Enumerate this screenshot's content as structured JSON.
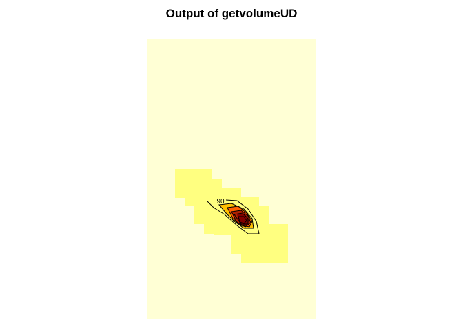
{
  "chart_data": {
    "type": "heatmap",
    "title": "Output of getvolumeUD",
    "xlabel": "",
    "ylabel": "",
    "grid": false,
    "legend": "none",
    "contour_label": "90",
    "colors": {
      "background": "#FFFFD5",
      "low": "#FFFF80",
      "mid": "#FFC000",
      "high": "#FF6000",
      "peak": "#B22000",
      "core": "#800000",
      "contour": "#000000"
    }
  }
}
